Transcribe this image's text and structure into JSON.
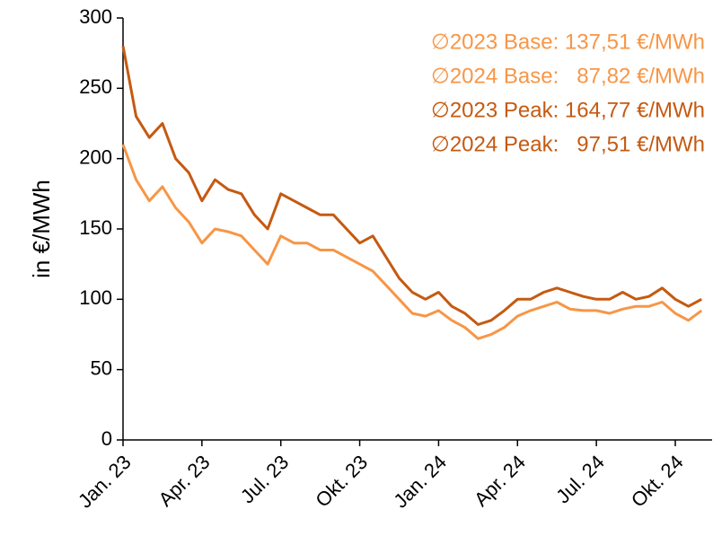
{
  "chart_data": {
    "type": "line",
    "y_label": "in €/MWh",
    "annotations": [
      {
        "text": "∅2023 Base: 137,51 €/MWh",
        "color": "#f79646"
      },
      {
        "text": "∅2024 Base:   87,82 €/MWh",
        "color": "#f79646"
      },
      {
        "text": "∅2023 Peak: 164,77 €/MWh",
        "color": "#c55a11"
      },
      {
        "text": "∅2024 Peak:   97,51 €/MWh",
        "color": "#c55a11"
      }
    ],
    "x": [
      0,
      0.5,
      1,
      1.5,
      2,
      2.5,
      3,
      3.5,
      4,
      4.5,
      5,
      5.5,
      6,
      6.5,
      7,
      7.5,
      8,
      8.5,
      9,
      9.5,
      10,
      10.5,
      11,
      11.5,
      12,
      12.5,
      13,
      13.5,
      14,
      14.5,
      15,
      15.5,
      16,
      16.5,
      17,
      17.5,
      18,
      18.5,
      19,
      19.5,
      20,
      20.5,
      21,
      21.5,
      22
    ],
    "series": [
      {
        "name": "Peak",
        "color": "#c55a11",
        "values": [
          280,
          230,
          215,
          225,
          200,
          190,
          170,
          185,
          178,
          175,
          160,
          150,
          175,
          170,
          165,
          160,
          160,
          150,
          140,
          145,
          130,
          115,
          105,
          100,
          105,
          95,
          90,
          82,
          85,
          92,
          100,
          100,
          105,
          108,
          105,
          102,
          100,
          100,
          105,
          100,
          102,
          108,
          100,
          95,
          100
        ]
      },
      {
        "name": "Base",
        "color": "#f79646",
        "values": [
          210,
          185,
          170,
          180,
          165,
          155,
          140,
          150,
          148,
          145,
          135,
          125,
          145,
          140,
          140,
          135,
          135,
          130,
          125,
          120,
          110,
          100,
          90,
          88,
          92,
          85,
          80,
          72,
          75,
          80,
          88,
          92,
          95,
          98,
          93,
          92,
          92,
          90,
          93,
          95,
          95,
          98,
          90,
          85,
          92
        ]
      }
    ],
    "xlim": [
      0,
      22.4
    ],
    "xticks": [
      {
        "value": 0,
        "label": "Jan. 23"
      },
      {
        "value": 3,
        "label": "Apr. 23"
      },
      {
        "value": 6,
        "label": "Jul. 23"
      },
      {
        "value": 9,
        "label": "Okt. 23"
      },
      {
        "value": 12,
        "label": "Jan. 24"
      },
      {
        "value": 15,
        "label": "Apr. 24"
      },
      {
        "value": 18,
        "label": "Jul. 24"
      },
      {
        "value": 21,
        "label": "Okt. 24"
      }
    ],
    "ylim": [
      0,
      300
    ],
    "yticks": [
      0,
      50,
      100,
      150,
      200,
      250,
      300
    ]
  }
}
